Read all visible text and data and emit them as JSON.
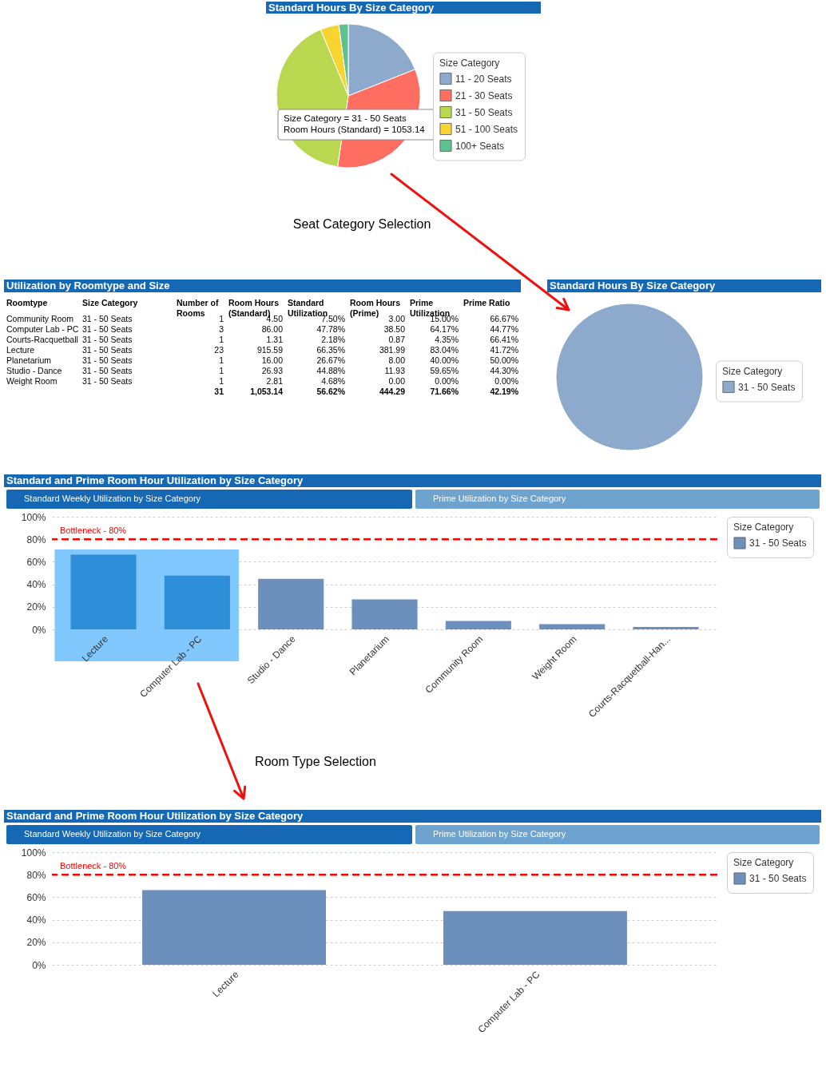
{
  "chart_data": [
    {
      "type": "pie",
      "title": "Standard Hours By Size Category",
      "categories": [
        "11 - 20 Seats",
        "21 - 30 Seats",
        "31 - 50 Seats",
        "51 - 100 Seats",
        "100+ Seats"
      ],
      "values": [
        19,
        33.4,
        41.3,
        4.2,
        2.1
      ],
      "colors": [
        "#8da9cc",
        "#ff6e61",
        "#b9d84f",
        "#f8d430",
        "#5fc090"
      ],
      "legend": "right",
      "legend_title": "Size Category",
      "annotations": [
        "Size Category = 31 - 50 Seats",
        "Room Hours (Standard) = 1053.14",
        "Seat Category Selection"
      ]
    },
    {
      "type": "other",
      "title": "Utilization by Roomtype and Size",
      "categories": [
        "Roomtype",
        "Size Category",
        "Number of Rooms",
        "Room Hours (Standard)",
        "Standard Utilization",
        "Room Hours (Prime)",
        "Prime Utilization",
        "Prime Ratio"
      ],
      "cell_labels": [
        [
          "Community Room",
          "31 - 50 Seats",
          "1",
          "4.50",
          "7.50%",
          "3.00",
          "15.00%",
          "66.67%"
        ],
        [
          "Computer Lab - PC",
          "31 - 50 Seats",
          "3",
          "86.00",
          "47.78%",
          "38.50",
          "64.17%",
          "44.77%"
        ],
        [
          "Courts-Racquetball",
          "31 - 50 Seats",
          "1",
          "1.31",
          "2.18%",
          "0.87",
          "4.35%",
          "66.41%"
        ],
        [
          "Lecture",
          "31 - 50 Seats",
          "23",
          "915.59",
          "66.35%",
          "381.99",
          "83.04%",
          "41.72%"
        ],
        [
          "Planetarium",
          "31 - 50 Seats",
          "1",
          "16.00",
          "26.67%",
          "8.00",
          "40.00%",
          "50.00%"
        ],
        [
          "Studio - Dance",
          "31 - 50 Seats",
          "1",
          "26.93",
          "44.88%",
          "11.93",
          "59.65%",
          "44.30%"
        ],
        [
          "Weight Room",
          "31 - 50 Seats",
          "1",
          "2.81",
          "4.68%",
          "0.00",
          "0.00%",
          "0.00%"
        ],
        [
          null,
          null,
          "31",
          "1,053.14",
          "56.62%",
          "444.29",
          "71.66%",
          "42.19%"
        ]
      ]
    },
    {
      "type": "pie",
      "title": "Standard Hours By Size Category",
      "categories": [
        "31 - 50 Seats"
      ],
      "values": [
        100
      ],
      "colors": [
        "#8da9cc"
      ],
      "legend": "right",
      "legend_title": "Size Category"
    },
    {
      "type": "bar",
      "title": "Standard and Prime Room Hour Utilization by Size Category",
      "annotations": [
        "Standard Weekly Utilization by Size Category",
        "Prime Utilization by Size Category",
        "Room Type Selection"
      ],
      "categories": [
        "Lecture",
        "Computer Lab - PC",
        "Studio - Dance",
        "Planetarium",
        "Community Room",
        "Weight Room",
        "Courts-Racquetball-Han..."
      ],
      "series": [
        {
          "name": "31 - 50 Seats",
          "values": [
            66.35,
            47.78,
            44.88,
            26.67,
            7.5,
            4.68,
            2.18
          ]
        }
      ],
      "colors": [
        "#2f8ed8",
        "#2f8ed8",
        "#6d8fbb",
        "#6d8fbb",
        "#6d8fbb",
        "#6d8fbb",
        "#6d8fbb"
      ],
      "ylim": [
        0,
        100
      ],
      "yticks": [
        {
          "value": 0,
          "label": "0%"
        },
        {
          "value": 20,
          "label": "20%"
        },
        {
          "value": 40,
          "label": "40%"
        },
        {
          "value": 60,
          "label": "60%"
        },
        {
          "value": 80,
          "label": "80%"
        },
        {
          "value": 100,
          "label": "100%"
        }
      ],
      "grid": "y",
      "legend": "right",
      "legend_title": "Size Category",
      "ref_lines": [
        {
          "axis": "y",
          "value": 80,
          "label": "Bottleneck - 80%",
          "color": "#ff0000",
          "line_style": "dashed"
        }
      ],
      "bands": [
        {
          "axis": "x",
          "from": "Lecture",
          "to": "Computer Lab - PC",
          "color": "#80c8ff"
        }
      ]
    },
    {
      "type": "bar",
      "title": "Standard and Prime Room Hour Utilization by Size Category",
      "annotations": [
        "Standard Weekly Utilization by Size Category",
        "Prime Utilization by Size Category"
      ],
      "categories": [
        "Lecture",
        "Computer Lab - PC"
      ],
      "series": [
        {
          "name": "31 - 50 Seats",
          "color": "#6d8fbb",
          "values": [
            66.35,
            47.78
          ]
        }
      ],
      "ylim": [
        0,
        100
      ],
      "yticks": [
        {
          "value": 0,
          "label": "0%"
        },
        {
          "value": 20,
          "label": "20%"
        },
        {
          "value": 40,
          "label": "40%"
        },
        {
          "value": 60,
          "label": "60%"
        },
        {
          "value": 80,
          "label": "80%"
        },
        {
          "value": 100,
          "label": "100%"
        }
      ],
      "grid": "y",
      "legend": "right",
      "legend_title": "Size Category",
      "ref_lines": [
        {
          "axis": "y",
          "value": 80,
          "label": "Bottleneck - 80%",
          "color": "#ff0000",
          "line_style": "dashed"
        }
      ]
    }
  ]
}
